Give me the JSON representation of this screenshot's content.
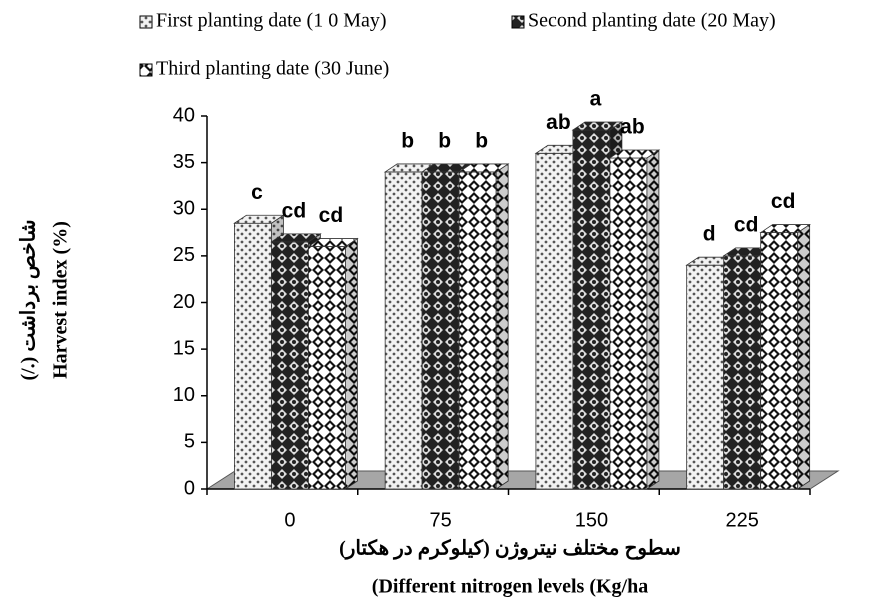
{
  "chart_data": {
    "type": "bar3d",
    "y_label": [
      "(/.) شاخص برداشت",
      "Harvest index (%)"
    ],
    "x_label": [
      "سطوح مختلف نیتروژن (کیلوکرم در هکتار)",
      "(Different nitrogen levels (Kg/ha"
    ],
    "categories": [
      "0",
      "75",
      "150",
      "225"
    ],
    "series": [
      {
        "name": "First planting date (1 0 May)",
        "pattern": "dots",
        "values": [
          28.5,
          34,
          36,
          24
        ],
        "letters": [
          "c",
          "b",
          "ab",
          "d"
        ]
      },
      {
        "name": "Second planting date (20 May)",
        "pattern": "checker",
        "values": [
          26.5,
          34,
          38.5,
          25
        ],
        "letters": [
          "cd",
          "b",
          "a",
          "cd"
        ]
      },
      {
        "name": "Third planting date (30 June)",
        "pattern": "diamond",
        "values": [
          26,
          34,
          35.5,
          27.5
        ],
        "letters": [
          "cd",
          "b",
          "ab",
          "cd"
        ]
      }
    ],
    "ylim": [
      0,
      40
    ],
    "yticks": [
      0,
      5,
      10,
      15,
      20,
      25,
      30,
      35,
      40
    ],
    "floor_color": "#a6a6a6"
  }
}
